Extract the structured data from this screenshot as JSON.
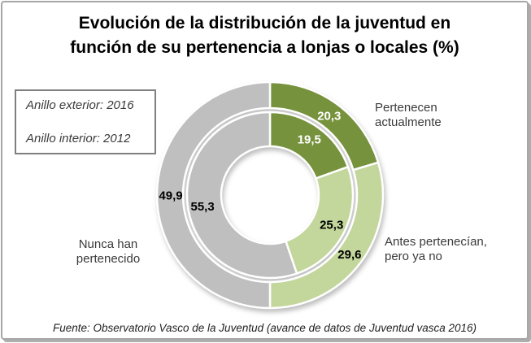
{
  "header": {
    "title_lines": [
      "Evolución de la distribución de la juventud en",
      "función de su pertenencia a lonjas o locales (%)"
    ]
  },
  "legend": {
    "exterior": "Anillo exterior: 2016",
    "interior": "Anillo interior: 2012"
  },
  "footer": {
    "source": "Fuente: Observatorio Vasco de la Juventud (avance de datos de Juventud vasca 2016)"
  },
  "chart_data": {
    "type": "donut",
    "title": "Evolución de la distribución de la juventud en función de su pertenencia a lonjas o locales (%)",
    "categories": [
      "Pertenecen actualmente",
      "Antes pertenecían, pero ya no",
      "Nunca han pertenecido"
    ],
    "colors": [
      "#76923C",
      "#C3D69B",
      "#BFBFBF"
    ],
    "value_label_colors": [
      "#FFFFFF",
      "#000000",
      "#000000"
    ],
    "separator_color": "#FFFFFF",
    "start_angle_deg": 0,
    "direction": "clockwise",
    "legend_note": [
      "Anillo exterior: 2016",
      "Anillo interior: 2012"
    ],
    "rings": [
      {
        "year": "2016",
        "position": "exterior",
        "values": [
          20.3,
          29.6,
          49.9
        ],
        "labels": [
          "20,3",
          "29,6",
          "49,9"
        ]
      },
      {
        "year": "2012",
        "position": "interior",
        "values": [
          19.5,
          25.3,
          55.3
        ],
        "labels": [
          "19,5",
          "25,3",
          "55,3"
        ]
      }
    ]
  }
}
